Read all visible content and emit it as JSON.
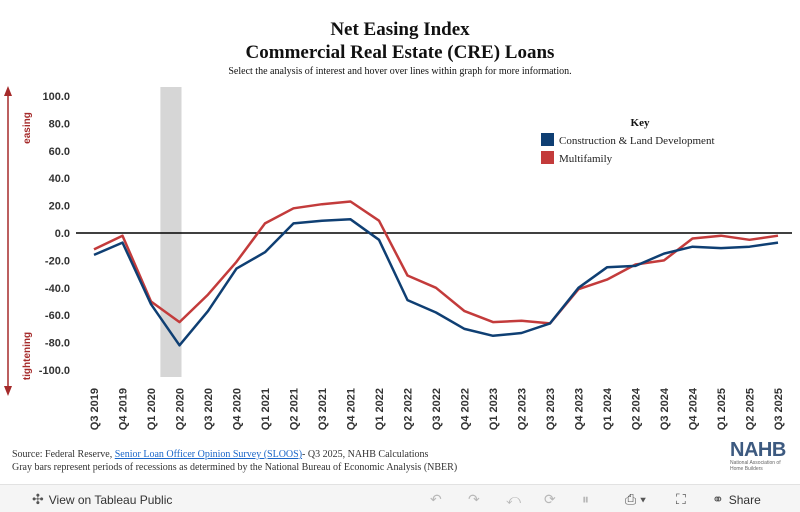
{
  "chart_data": {
    "type": "line",
    "title_line1": "Net Easing Index",
    "title_line2": "Commercial Real Estate (CRE) Loans",
    "subtitle": "Select the analysis of interest and hover over lines within graph for more information.",
    "ylim": [
      -100,
      100
    ],
    "yticks": [
      "100.0",
      "80.0",
      "60.0",
      "40.0",
      "20.0",
      "0.0",
      "-20.0",
      "-40.0",
      "-60.0",
      "-80.0",
      "-100.0"
    ],
    "ytick_values": [
      100,
      80,
      60,
      40,
      20,
      0,
      -20,
      -40,
      -60,
      -80,
      -100
    ],
    "easing_label": "easing",
    "tightening_label": "tightening",
    "categories": [
      "Q3 2019",
      "Q4 2019",
      "Q1 2020",
      "Q2 2020",
      "Q3 2020",
      "Q4 2020",
      "Q1 2021",
      "Q2 2021",
      "Q3 2021",
      "Q4 2021",
      "Q1 2022",
      "Q2 2022",
      "Q3 2022",
      "Q4 2022",
      "Q1 2023",
      "Q2 2023",
      "Q3 2023",
      "Q4 2023",
      "Q1 2024",
      "Q2 2024",
      "Q3 2024",
      "Q4 2024",
      "Q1 2025",
      "Q2 2025",
      "Q3 2025"
    ],
    "recession": {
      "start_index": 2.4,
      "end_index": 3.0
    },
    "legend_title": "Key",
    "series": [
      {
        "name": "Construction & Land Development",
        "color": "#0f3f73",
        "values": [
          -16,
          -7,
          -52,
          -82,
          -57,
          -26,
          -14,
          7,
          9,
          10,
          -5,
          -49,
          -58,
          -70,
          -75,
          -73,
          -66,
          -40,
          -25,
          -24,
          -15,
          -10,
          -11,
          -10,
          -7
        ]
      },
      {
        "name": "Multifamily",
        "color": "#c33b3b",
        "values": [
          -12,
          -2,
          -50,
          -65,
          -45,
          -21,
          7,
          18,
          21,
          23,
          9,
          -31,
          -40,
          -57,
          -65,
          -64,
          -66,
          -41,
          -34,
          -23,
          -20,
          -4,
          -2,
          -5,
          -2
        ]
      }
    ]
  },
  "footer": {
    "source_prefix": "Source: Federal Reserve, ",
    "source_link": "Senior Loan Officer Opinion Survey (SLOOS)",
    "source_suffix": "- Q3 2025, NAHB Calculations",
    "note": "Gray bars represent periods of recessions as determined by the National Bureau of Economic Analysis (NBER)"
  },
  "logo": {
    "text": "NAHB",
    "sub": "National Association of Home Builders"
  },
  "toolbar": {
    "view_label": "View on Tableau Public",
    "share_label": "Share"
  }
}
